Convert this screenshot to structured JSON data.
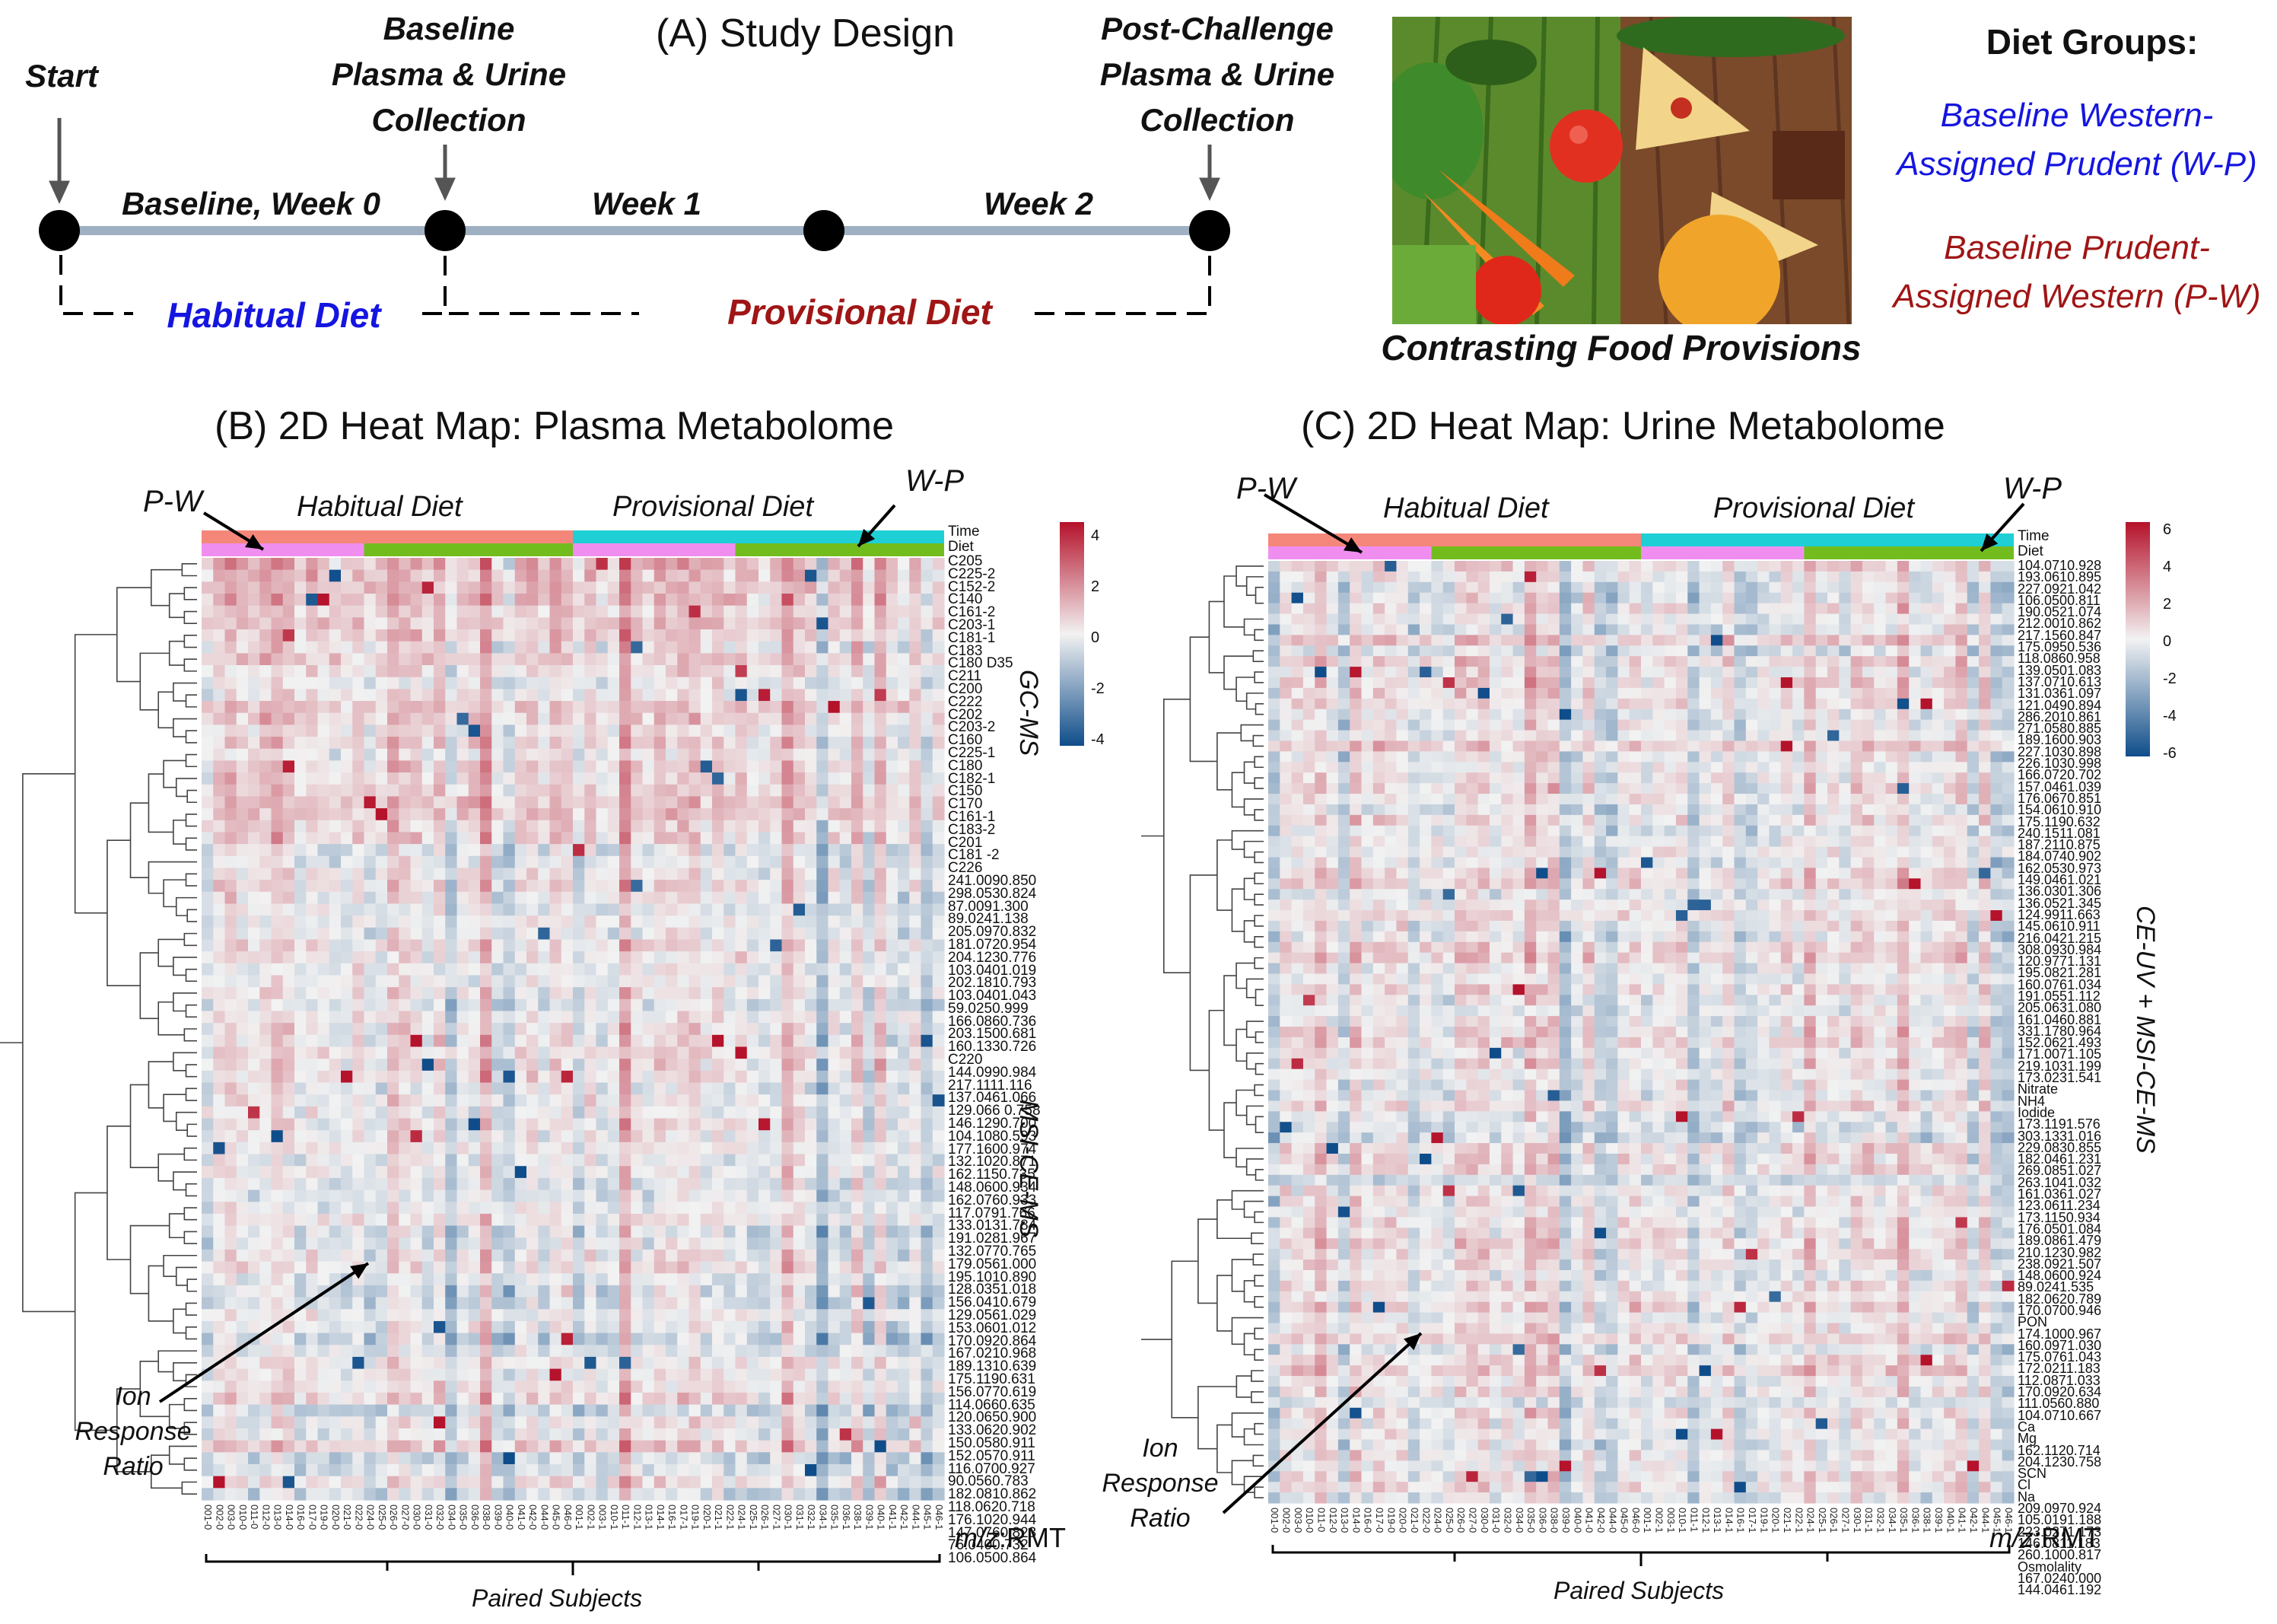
{
  "panel_a": {
    "title": "(A) Study Design",
    "timeline": {
      "start": "Start",
      "baseline_collection": [
        "Baseline",
        "Plasma & Urine",
        "Collection"
      ],
      "post_collection": [
        "Post-Challenge",
        "Plasma & Urine",
        "Collection"
      ],
      "week0": "Baseline, Week 0",
      "week1": "Week 1",
      "week2": "Week 2",
      "habitual": "Habitual Diet",
      "provisional": "Provisional Diet"
    },
    "photo_caption": "Contrasting Food Provisions",
    "diet_groups": {
      "title": "Diet Groups:",
      "wp": [
        "Baseline Western-",
        "Assigned Prudent (W-P)"
      ],
      "pw": [
        "Baseline Prudent-",
        "Assigned Western (P-W)"
      ]
    }
  },
  "panel_b": {
    "title": "(B) 2D Heat Map: Plasma Metabolome",
    "pw": "P-W",
    "wp": "W-P",
    "habitual": "Habitual Diet",
    "provisional": "Provisional Diet",
    "time_label": "Time",
    "diet_label": "Diet",
    "gcms": "GC-MS",
    "msice": "MSI-CE-MS",
    "ion_response": [
      "Ion",
      "Response",
      "Ratio"
    ],
    "mz_label": "m/z:RMT",
    "mz_label_italic": "m/z",
    "mz_label_rest": ":RMT",
    "paired": "Paired Subjects",
    "scale_ticks": [
      "4",
      "2",
      "0",
      "-2",
      "-4"
    ],
    "rows": [
      "C205",
      "C225-2",
      "C152-2",
      "C140",
      "C161-2",
      "C203-1",
      "C181-1",
      "C183",
      "C180 D35",
      "C211",
      "C200",
      "C222",
      "C202",
      "C203-2",
      "C160",
      "C225-1",
      "C180",
      "C182-1",
      "C150",
      "C170",
      "C161-1",
      "C183-2",
      "C201",
      "C181 -2",
      "C226",
      "241.0090.850",
      "298.0530.824",
      "87.0091.300",
      "89.0241.138",
      "205.0970.832",
      "181.0720.954",
      "204.1230.776",
      "103.0401.019",
      "202.1810.793",
      "103.0401.043",
      "59.0250.999",
      "166.0860.736",
      "203.1500.681",
      "160.1330.726",
      "C220",
      "144.0990.984",
      "217.1111.116",
      "137.0461.066",
      "129.066 0.758",
      "146.1290.700",
      "104.1080.593",
      "177.1600.974",
      "132.1020.871",
      "162.1150.735",
      "148.0600.934",
      "162.0760.933",
      "117.0791.766",
      "133.0131.784",
      "191.0281.967",
      "132.0770.765",
      "179.0561.000",
      "195.1010.890",
      "128.0351.018",
      "156.0410.679",
      "129.0561.029",
      "153.0601.012",
      "170.0920.864",
      "167.0210.968",
      "189.1310.639",
      "175.1190.631",
      "156.0770.619",
      "114.0660.635",
      "120.0650.900",
      "133.0620.902",
      "150.0580.911",
      "152.0570.911",
      "116.0700.927",
      "90.0560.783",
      "182.0810.862",
      "118.0620.718",
      "176.1020.944",
      "147.0760.823",
      "76.0400.732",
      "106.0500.864"
    ],
    "cols": [
      "001-0",
      "002-0",
      "003-0",
      "010-0",
      "011-0",
      "012-0",
      "013-0",
      "014-0",
      "016-0",
      "017-0",
      "019-0",
      "020-0",
      "021-0",
      "022-0",
      "024-0",
      "025-0",
      "026-0",
      "027-0",
      "030-0",
      "031-0",
      "032-0",
      "034-0",
      "035-0",
      "036-0",
      "038-0",
      "039-0",
      "040-0",
      "041-0",
      "042-0",
      "044-0",
      "045-0",
      "046-0",
      "001-1",
      "002-1",
      "003-1",
      "010-1",
      "011-1",
      "012-1",
      "013-1",
      "014-1",
      "016-1",
      "017-1",
      "019-1",
      "020-1",
      "021-1",
      "022-1",
      "024-1",
      "025-1",
      "026-1",
      "027-1",
      "030-1",
      "031-1",
      "032-1",
      "034-1",
      "035-1",
      "036-1",
      "038-1",
      "039-1",
      "040-1",
      "041-1",
      "042-1",
      "044-1",
      "045-1",
      "046-1"
    ]
  },
  "panel_c": {
    "title": "(C) 2D Heat Map: Urine Metabolome",
    "pw": "P-W",
    "wp": "W-P",
    "habitual": "Habitual Diet",
    "provisional": "Provisional Diet",
    "time_label": "Time",
    "diet_label": "Diet",
    "ceuv": "CE-UV + MSI-CE-MS",
    "ion_response": [
      "Ion",
      "Response",
      "Ratio"
    ],
    "mz_label_italic": "m/z",
    "mz_label_rest": ":RMT",
    "paired": "Paired Subjects",
    "scale_ticks": [
      "6",
      "4",
      "2",
      "0",
      "-2",
      "-4",
      "-6"
    ],
    "rows": [
      "104.0710.928",
      "193.0610.895",
      "227.0921.042",
      "106.0500.811",
      "190.0521.074",
      "212.0010.862",
      "217.1560.847",
      "175.0950.536",
      "118.0860.958",
      "139.0501.083",
      "137.0710.613",
      "131.0361.097",
      "121.0490.894",
      "286.2010.861",
      "271.0580.885",
      "189.1600.903",
      "227.1030.898",
      "226.1030.998",
      "166.0720.702",
      "157.0461.039",
      "176.0670.851",
      "154.0610.910",
      "175.1190.632",
      "240.1511.081",
      "187.2110.875",
      "184.0740.902",
      "162.0530.973",
      "149.0461.021",
      "136.0301.306",
      "136.0521.345",
      "124.9911.663",
      "145.0610.911",
      "216.0421.215",
      "308.0930.984",
      "120.9771.131",
      "195.0821.281",
      "160.0761.034",
      "191.0551.112",
      "205.0631.080",
      "161.0460.881",
      "331.1780.964",
      "152.0621.493",
      "171.0071.105",
      "219.1031.199",
      "173.0231.541",
      "Nitrate",
      "NH4",
      "Iodide",
      "173.1191.576",
      "303.1331.016",
      "229.0830.855",
      "182.0461.231",
      "269.0851.027",
      "263.1041.032",
      "161.0361.027",
      "123.0611.234",
      "173.1150.934",
      "176.0501.084",
      "189.0861.479",
      "210.1230.982",
      "238.0921.507",
      "148.0600.924",
      "89.0241.535",
      "182.0620.789",
      "170.0700.946",
      "PON",
      "174.1000.967",
      "160.0971.030",
      "175.0761.043",
      "172.0211.183",
      "112.0871.033",
      "170.0920.634",
      "111.0560.880",
      "104.0710.667",
      "Ca",
      "Mg",
      "162.1120.714",
      "204.1230.758",
      "SCN",
      "Cl",
      "Na",
      "209.0970.924",
      "105.0191.188",
      "223.0271.173",
      "146.0811.183",
      "260.1000.817",
      "Osmolality",
      "167.0240.000",
      "144.0461.192"
    ],
    "cols": [
      "001-0",
      "002-0",
      "003-0",
      "010-0",
      "011-0",
      "012-0",
      "013-0",
      "014-0",
      "016-0",
      "017-0",
      "019-0",
      "020-0",
      "021-0",
      "022-0",
      "024-0",
      "025-0",
      "026-0",
      "027-0",
      "030-0",
      "031-0",
      "032-0",
      "034-0",
      "035-0",
      "036-0",
      "038-0",
      "039-0",
      "040-0",
      "041-0",
      "042-0",
      "044-0",
      "045-0",
      "046-0",
      "001-1",
      "002-1",
      "003-1",
      "010-1",
      "011-1",
      "012-1",
      "013-1",
      "014-1",
      "016-1",
      "017-1",
      "019-1",
      "020-1",
      "021-1",
      "022-1",
      "024-1",
      "025-1",
      "026-1",
      "027-1",
      "030-1",
      "031-1",
      "032-1",
      "034-1",
      "035-1",
      "036-1",
      "038-1",
      "039-1",
      "040-1",
      "041-1",
      "042-1",
      "044-1",
      "045-1",
      "046-1"
    ]
  },
  "colors": {
    "time_habitual": "#f4877a",
    "time_provisional": "#1ecfd6",
    "diet_pw": "#f08ef0",
    "diet_wp": "#72bd1d",
    "hi": "#b5122b",
    "mid": "#f2f2f2",
    "lo": "#0f4d8a",
    "timeline": "#9fb0c2"
  }
}
